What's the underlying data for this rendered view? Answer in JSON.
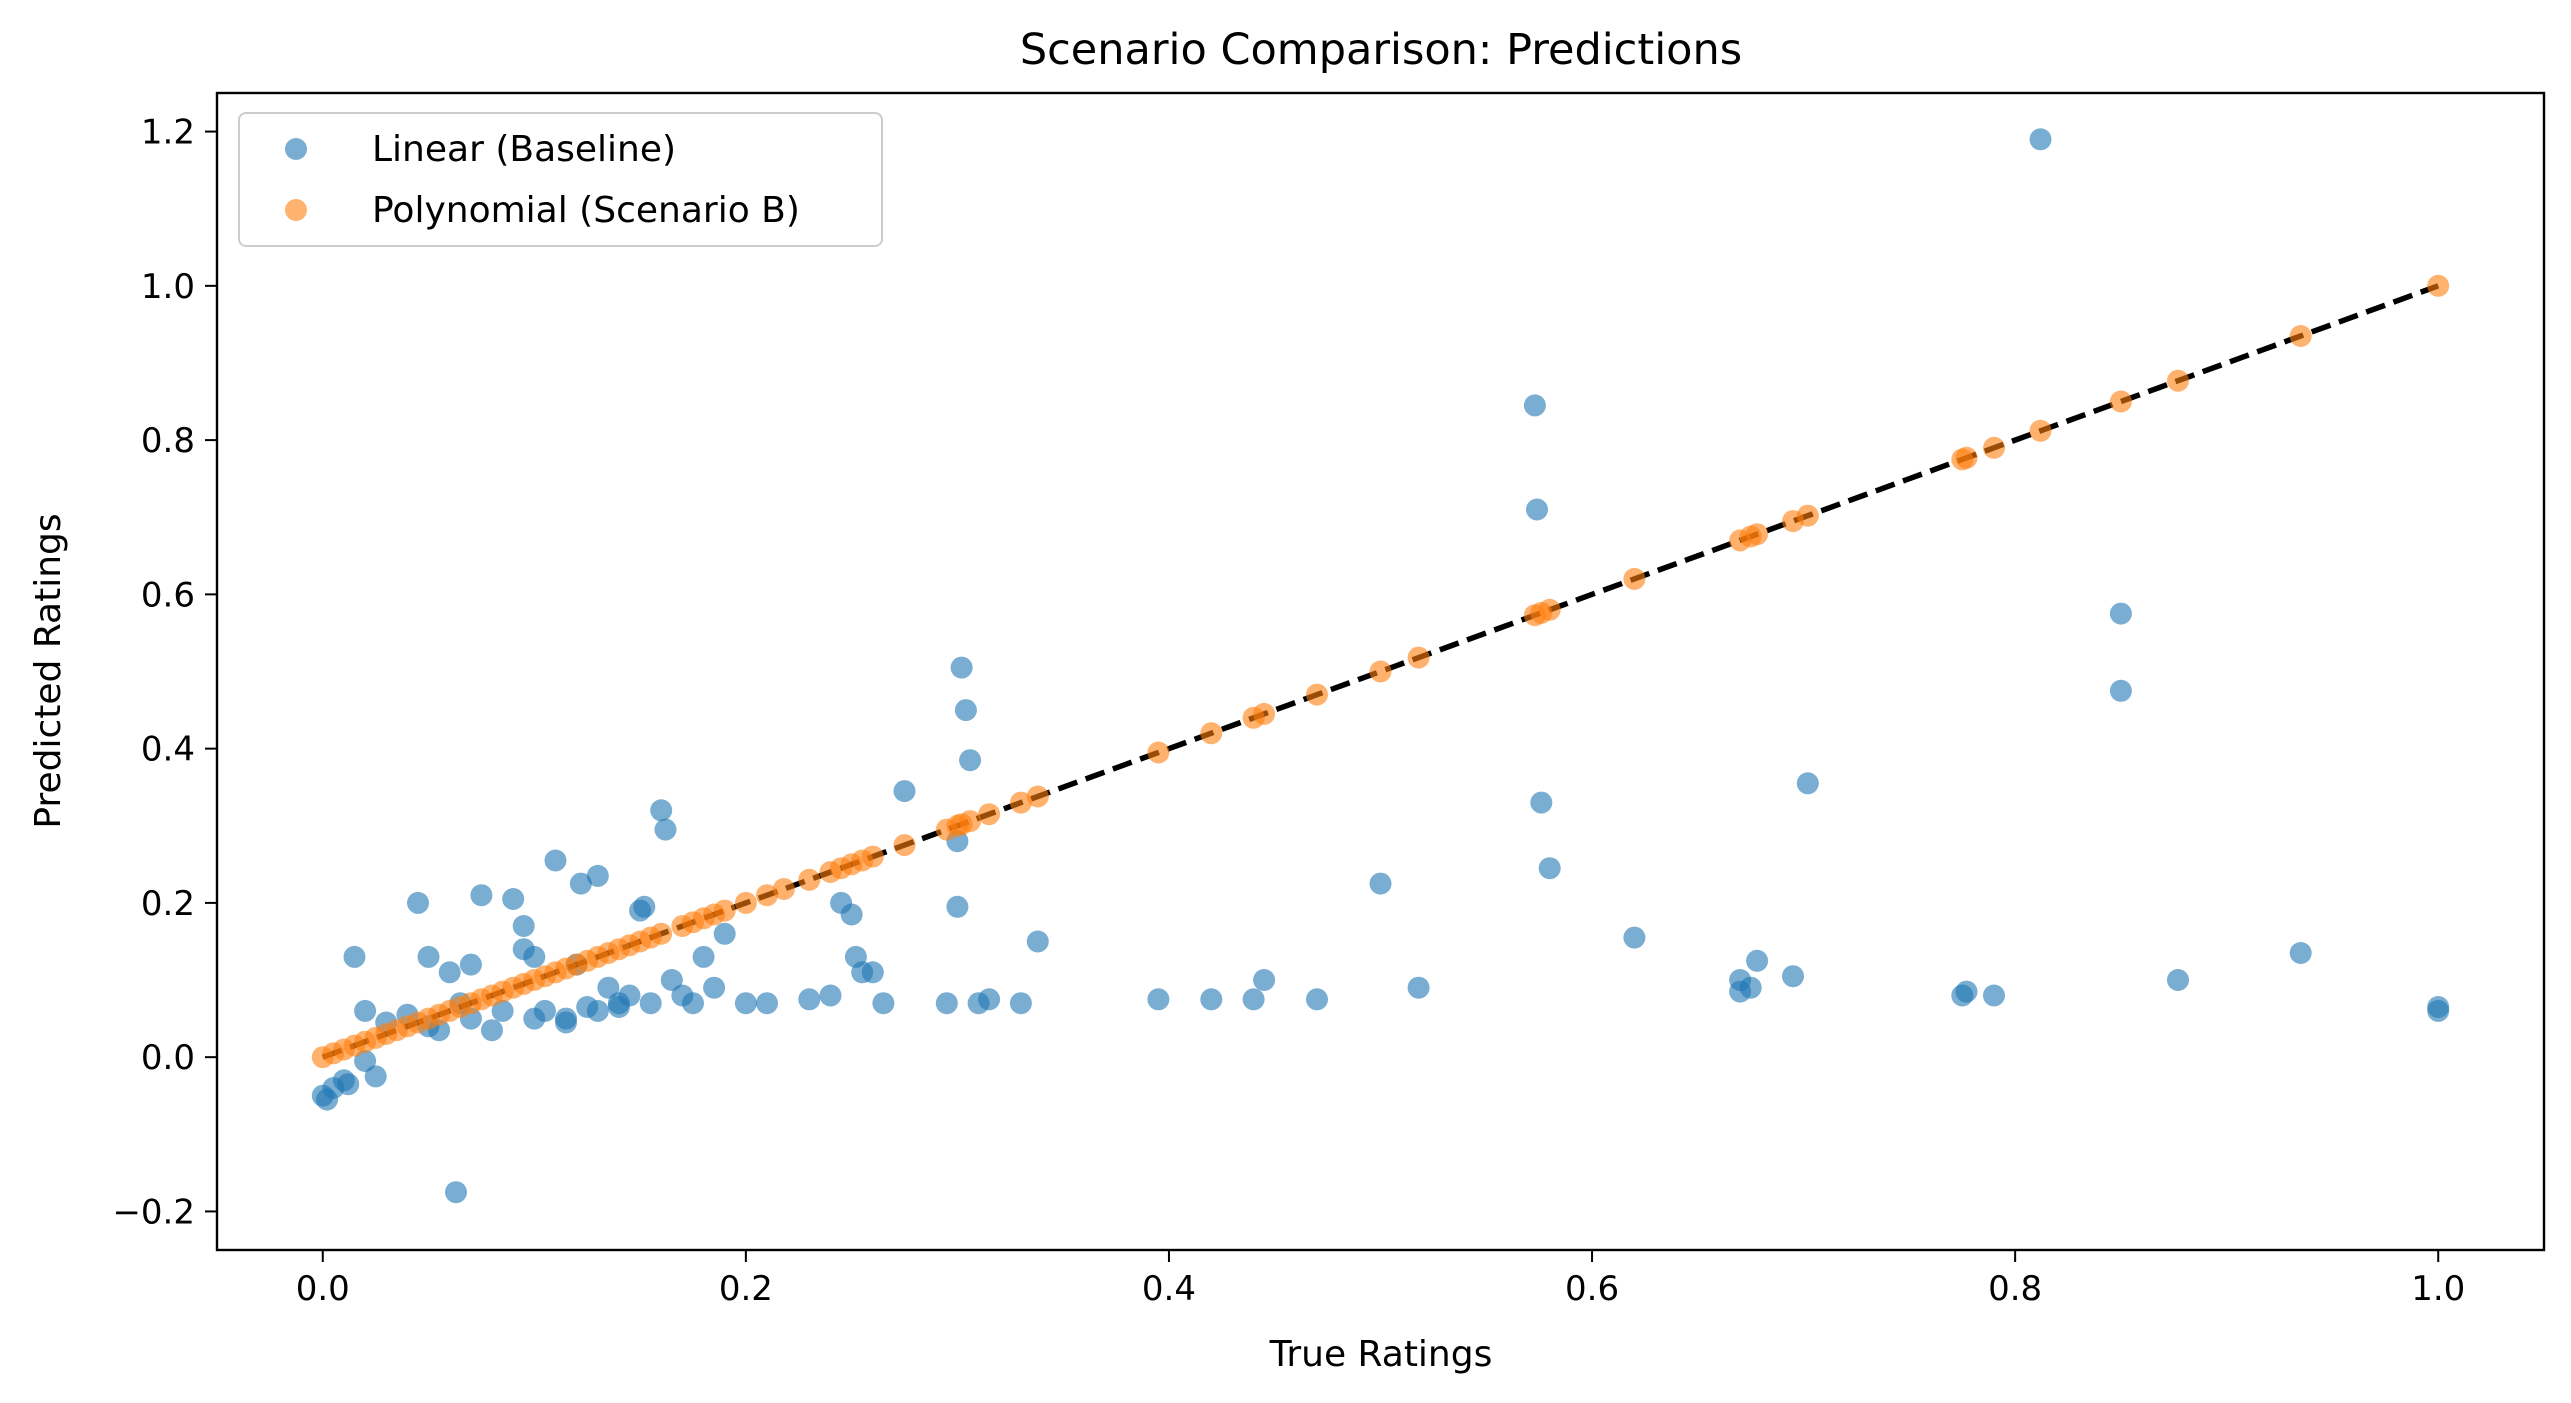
{
  "chart_data": {
    "type": "scatter",
    "title": "Scenario Comparison: Predictions",
    "xlabel": "True Ratings",
    "ylabel": "Predicted Ratings",
    "xlim": [
      -0.05,
      1.05
    ],
    "ylim": [
      -0.25,
      1.25
    ],
    "x_ticks": [
      0.0,
      0.2,
      0.4,
      0.6,
      0.8,
      1.0
    ],
    "x_tick_labels": [
      "0.0",
      "0.2",
      "0.4",
      "0.6",
      "0.8",
      "1.0"
    ],
    "y_ticks": [
      -0.2,
      0.0,
      0.2,
      0.4,
      0.6,
      0.8,
      1.0,
      1.2
    ],
    "y_tick_labels": [
      "−0.2",
      "0.0",
      "0.2",
      "0.4",
      "0.6",
      "0.8",
      "1.0",
      "1.2"
    ],
    "grid": false,
    "legend_position": "top-left",
    "reference_line": {
      "style": "dashed",
      "color": "#000000",
      "from": [
        0.0,
        0.0
      ],
      "to": [
        1.0,
        1.0
      ]
    },
    "series": [
      {
        "name": "Linear (Baseline)",
        "color": "#1f77b4",
        "points": [
          [
            0.0,
            -0.05
          ],
          [
            0.002,
            -0.055
          ],
          [
            0.005,
            -0.04
          ],
          [
            0.01,
            -0.03
          ],
          [
            0.012,
            -0.035
          ],
          [
            0.02,
            -0.005
          ],
          [
            0.025,
            -0.025
          ],
          [
            0.015,
            0.13
          ],
          [
            0.045,
            0.2
          ],
          [
            0.05,
            0.13
          ],
          [
            0.06,
            0.11
          ],
          [
            0.065,
            0.07
          ],
          [
            0.07,
            0.12
          ],
          [
            0.075,
            0.21
          ],
          [
            0.085,
            0.06
          ],
          [
            0.09,
            0.205
          ],
          [
            0.095,
            0.14
          ],
          [
            0.095,
            0.17
          ],
          [
            0.1,
            0.13
          ],
          [
            0.105,
            0.06
          ],
          [
            0.11,
            0.255
          ],
          [
            0.115,
            0.05
          ],
          [
            0.12,
            0.12
          ],
          [
            0.122,
            0.225
          ],
          [
            0.125,
            0.065
          ],
          [
            0.13,
            0.235
          ],
          [
            0.135,
            0.09
          ],
          [
            0.14,
            0.07
          ],
          [
            0.145,
            0.08
          ],
          [
            0.15,
            0.19
          ],
          [
            0.152,
            0.195
          ],
          [
            0.155,
            0.07
          ],
          [
            0.16,
            0.32
          ],
          [
            0.162,
            0.295
          ],
          [
            0.165,
            0.1
          ],
          [
            0.17,
            0.08
          ],
          [
            0.175,
            0.07
          ],
          [
            0.18,
            0.13
          ],
          [
            0.185,
            0.09
          ],
          [
            0.19,
            0.16
          ],
          [
            0.2,
            0.07
          ],
          [
            0.21,
            0.07
          ],
          [
            0.23,
            0.075
          ],
          [
            0.24,
            0.08
          ],
          [
            0.245,
            0.2
          ],
          [
            0.25,
            0.185
          ],
          [
            0.252,
            0.13
          ],
          [
            0.255,
            0.11
          ],
          [
            0.26,
            0.11
          ],
          [
            0.265,
            0.07
          ],
          [
            0.275,
            0.345
          ],
          [
            0.295,
            0.07
          ],
          [
            0.3,
            0.28
          ],
          [
            0.3,
            0.195
          ],
          [
            0.302,
            0.505
          ],
          [
            0.304,
            0.45
          ],
          [
            0.306,
            0.385
          ],
          [
            0.31,
            0.07
          ],
          [
            0.315,
            0.075
          ],
          [
            0.33,
            0.07
          ],
          [
            0.338,
            0.15
          ],
          [
            0.395,
            0.075
          ],
          [
            0.42,
            0.075
          ],
          [
            0.44,
            0.075
          ],
          [
            0.445,
            0.1
          ],
          [
            0.47,
            0.075
          ],
          [
            0.5,
            0.225
          ],
          [
            0.518,
            0.09
          ],
          [
            0.573,
            0.845
          ],
          [
            0.574,
            0.71
          ],
          [
            0.576,
            0.33
          ],
          [
            0.58,
            0.245
          ],
          [
            0.62,
            0.155
          ],
          [
            0.67,
            0.085
          ],
          [
            0.67,
            0.1
          ],
          [
            0.675,
            0.09
          ],
          [
            0.678,
            0.125
          ],
          [
            0.695,
            0.105
          ],
          [
            0.702,
            0.355
          ],
          [
            0.775,
            0.08
          ],
          [
            0.777,
            0.085
          ],
          [
            0.79,
            0.08
          ],
          [
            0.812,
            1.19
          ],
          [
            0.85,
            0.575
          ],
          [
            0.85,
            0.475
          ],
          [
            0.877,
            0.1
          ],
          [
            0.935,
            0.135
          ],
          [
            1.0,
            0.065
          ],
          [
            1.0,
            0.06
          ],
          [
            0.063,
            -0.175
          ],
          [
            0.02,
            0.06
          ],
          [
            0.03,
            0.045
          ],
          [
            0.04,
            0.055
          ],
          [
            0.05,
            0.04
          ],
          [
            0.055,
            0.035
          ],
          [
            0.07,
            0.05
          ],
          [
            0.08,
            0.035
          ],
          [
            0.1,
            0.05
          ],
          [
            0.115,
            0.045
          ],
          [
            0.13,
            0.06
          ],
          [
            0.14,
            0.065
          ]
        ]
      },
      {
        "name": "Polynomial (Scenario B)",
        "color": "#ff7f0e",
        "points": [
          [
            0.0,
            0.0
          ],
          [
            0.005,
            0.005
          ],
          [
            0.01,
            0.01
          ],
          [
            0.015,
            0.015
          ],
          [
            0.02,
            0.02
          ],
          [
            0.025,
            0.025
          ],
          [
            0.03,
            0.03
          ],
          [
            0.035,
            0.035
          ],
          [
            0.04,
            0.04
          ],
          [
            0.045,
            0.045
          ],
          [
            0.05,
            0.05
          ],
          [
            0.055,
            0.055
          ],
          [
            0.06,
            0.06
          ],
          [
            0.065,
            0.065
          ],
          [
            0.07,
            0.07
          ],
          [
            0.075,
            0.075
          ],
          [
            0.08,
            0.08
          ],
          [
            0.085,
            0.085
          ],
          [
            0.09,
            0.09
          ],
          [
            0.095,
            0.095
          ],
          [
            0.1,
            0.1
          ],
          [
            0.105,
            0.105
          ],
          [
            0.11,
            0.11
          ],
          [
            0.115,
            0.115
          ],
          [
            0.12,
            0.12
          ],
          [
            0.125,
            0.125
          ],
          [
            0.13,
            0.13
          ],
          [
            0.135,
            0.135
          ],
          [
            0.14,
            0.14
          ],
          [
            0.145,
            0.145
          ],
          [
            0.15,
            0.15
          ],
          [
            0.155,
            0.155
          ],
          [
            0.16,
            0.16
          ],
          [
            0.17,
            0.17
          ],
          [
            0.175,
            0.175
          ],
          [
            0.18,
            0.18
          ],
          [
            0.185,
            0.185
          ],
          [
            0.19,
            0.19
          ],
          [
            0.2,
            0.2
          ],
          [
            0.21,
            0.21
          ],
          [
            0.218,
            0.218
          ],
          [
            0.23,
            0.23
          ],
          [
            0.24,
            0.24
          ],
          [
            0.245,
            0.245
          ],
          [
            0.25,
            0.25
          ],
          [
            0.255,
            0.255
          ],
          [
            0.26,
            0.26
          ],
          [
            0.275,
            0.275
          ],
          [
            0.295,
            0.295
          ],
          [
            0.3,
            0.3
          ],
          [
            0.302,
            0.302
          ],
          [
            0.306,
            0.306
          ],
          [
            0.315,
            0.315
          ],
          [
            0.33,
            0.33
          ],
          [
            0.338,
            0.338
          ],
          [
            0.395,
            0.395
          ],
          [
            0.42,
            0.42
          ],
          [
            0.44,
            0.44
          ],
          [
            0.445,
            0.445
          ],
          [
            0.47,
            0.47
          ],
          [
            0.5,
            0.5
          ],
          [
            0.518,
            0.518
          ],
          [
            0.573,
            0.573
          ],
          [
            0.576,
            0.576
          ],
          [
            0.58,
            0.58
          ],
          [
            0.62,
            0.62
          ],
          [
            0.67,
            0.67
          ],
          [
            0.675,
            0.675
          ],
          [
            0.678,
            0.678
          ],
          [
            0.695,
            0.695
          ],
          [
            0.702,
            0.702
          ],
          [
            0.775,
            0.775
          ],
          [
            0.777,
            0.777
          ],
          [
            0.79,
            0.79
          ],
          [
            0.812,
            0.812
          ],
          [
            0.85,
            0.85
          ],
          [
            0.877,
            0.877
          ],
          [
            0.935,
            0.935
          ],
          [
            1.0,
            1.0
          ]
        ]
      }
    ]
  }
}
